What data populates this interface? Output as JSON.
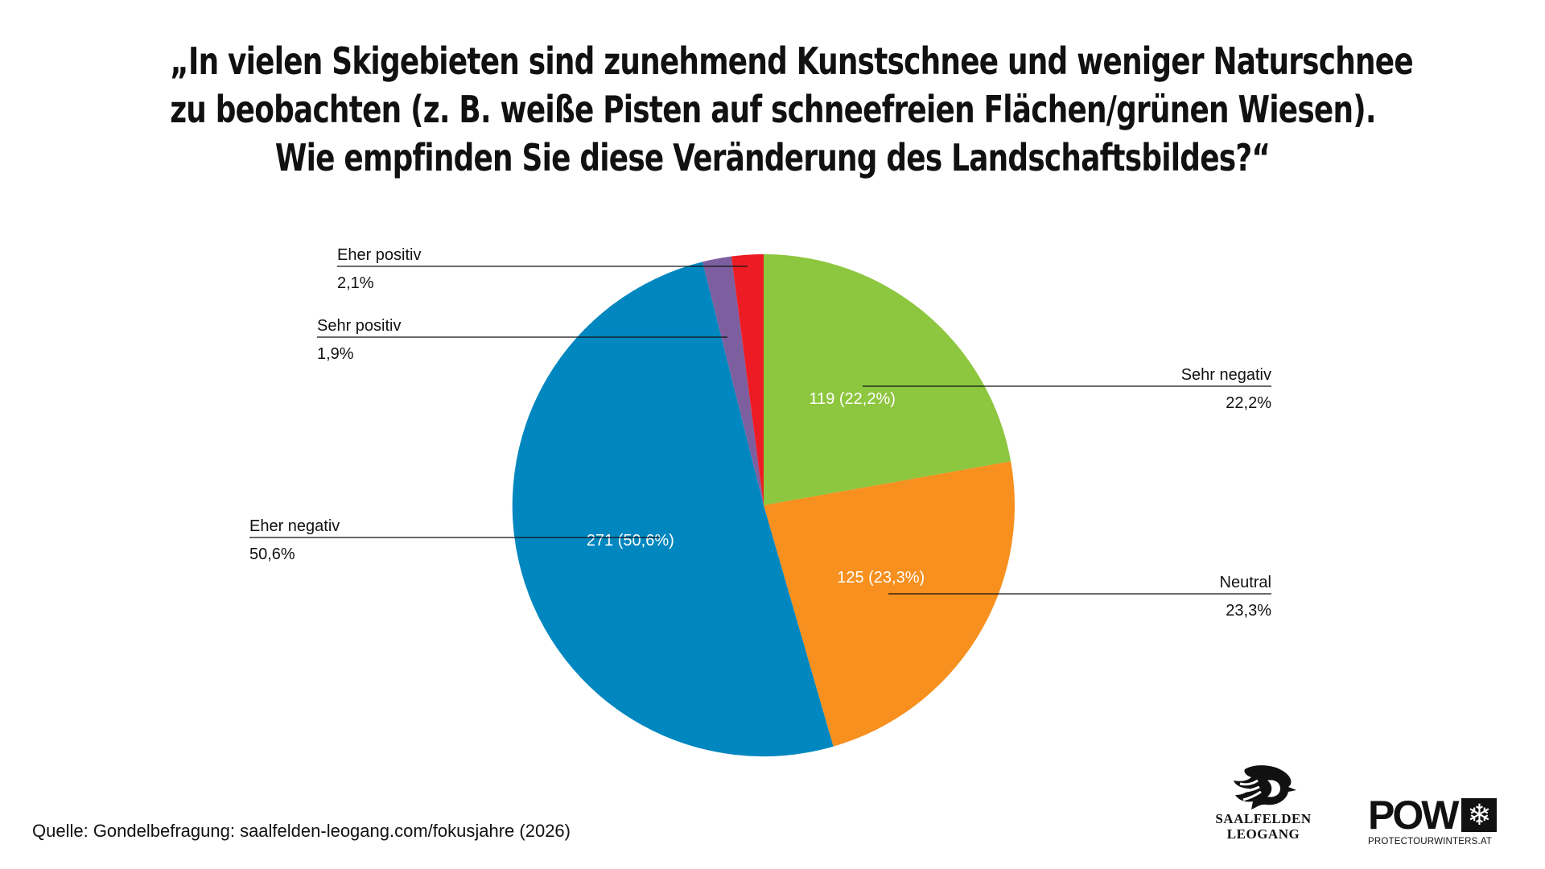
{
  "title_lines": [
    "„In vielen Skigebieten sind zunehmend Kunstschnee und weniger Naturschnee",
    "zu beobachten (z. B. weiße Pisten auf schneefreien Flächen/grünen Wiesen).",
    "Wie empfinden Sie diese Veränderung des Landschaftsbildes?“"
  ],
  "chart_data": {
    "type": "pie",
    "title": "„In vielen Skigebieten sind zunehmend Kunstschnee und weniger Naturschnee zu beobachten (z. B. weiße Pisten auf schneefreien Flächen/grünen Wiesen). Wie empfinden Sie diese Veränderung des Landschaftsbildes?“",
    "start": "12 o'clock",
    "direction": "clockwise",
    "slices": [
      {
        "name": "Sehr negativ",
        "count": 119,
        "percent": 22.2,
        "pct_label": "22,2%",
        "inner_label": "119 (22,2%)",
        "color": "#8DC63F"
      },
      {
        "name": "Neutral",
        "count": 125,
        "percent": 23.3,
        "pct_label": "23,3%",
        "inner_label": "125 (23,3%)",
        "color": "#F7901E"
      },
      {
        "name": "Eher negativ",
        "count": 271,
        "percent": 50.6,
        "pct_label": "50,6%",
        "inner_label": "271 (50,6%)",
        "color": "#0087C0"
      },
      {
        "name": "Sehr positiv",
        "count": 10,
        "percent": 1.9,
        "pct_label": "1,9%",
        "inner_label": "",
        "color": "#7D5F9F"
      },
      {
        "name": "Eher positiv",
        "count": 11,
        "percent": 2.1,
        "pct_label": "2,1%",
        "inner_label": "",
        "color": "#ED1C24"
      }
    ],
    "callout_placement": {
      "Sehr negativ": "right",
      "Neutral": "right",
      "Eher negativ": "left",
      "Sehr positiv": "left",
      "Eher positiv": "left"
    }
  },
  "source": "Quelle: Gondelbefragung: saalfelden-leogang.com/fokusjahre (2026)",
  "logos": {
    "saalfelden": {
      "line1": "SAALFELDEN",
      "line2": "LEOGANG"
    },
    "pow": {
      "mark": "POW",
      "url": "PROTECTOURWINTERS.AT",
      "icon": "snowflake-icon"
    }
  }
}
